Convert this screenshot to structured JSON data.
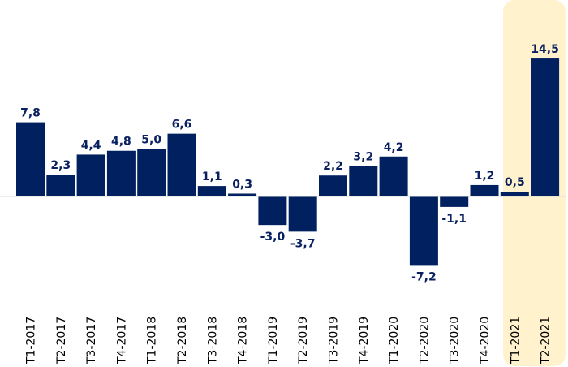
{
  "chart_data": {
    "type": "bar",
    "categories": [
      "T1-2017",
      "T2-2017",
      "T3-2017",
      "T4-2017",
      "T1-2018",
      "T2-2018",
      "T3-2018",
      "T4-2018",
      "T1-2019",
      "T2-2019",
      "T3-2019",
      "T4-2019",
      "T1-2020",
      "T2-2020",
      "T3-2020",
      "T4-2020",
      "T1-2021",
      "T2-2021"
    ],
    "values": [
      7.8,
      2.3,
      4.4,
      4.8,
      5.0,
      6.6,
      1.1,
      0.3,
      -3.0,
      -3.7,
      2.2,
      3.2,
      4.2,
      -7.2,
      -1.1,
      1.2,
      0.5,
      14.5
    ],
    "value_labels": [
      "7,8",
      "2,3",
      "4,4",
      "4,8",
      "5,0",
      "6,6",
      "1,1",
      "0,3",
      "-3,0",
      "-3,7",
      "2,2",
      "3,2",
      "4,2",
      "-7,2",
      "-1,1",
      "1,2",
      "0,5",
      "14,5"
    ],
    "highlighted_categories": [
      "T1-2021",
      "T2-2021"
    ],
    "title": "",
    "xlabel": "",
    "ylabel": "",
    "grid": false,
    "legend": "none",
    "colors": {
      "bar": "#002060",
      "label": "#0a2060",
      "highlight": "#fff2cc",
      "baseline": "#d9d9d9"
    }
  }
}
